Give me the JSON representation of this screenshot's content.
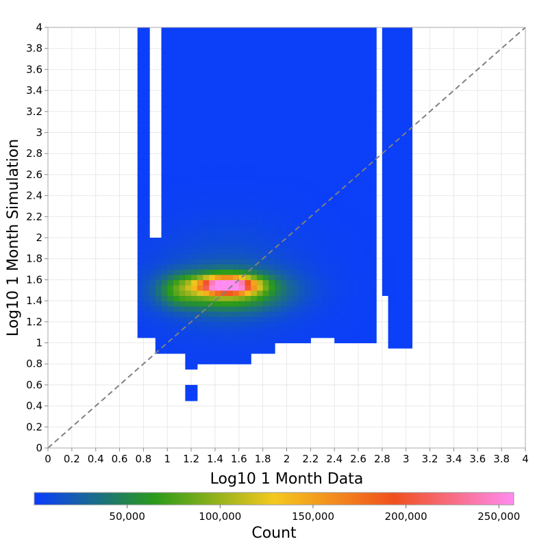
{
  "chart_data": {
    "type": "heatmap",
    "xlabel": "Log10 1 Month Data",
    "ylabel": "Log10 1 Month Simulation",
    "xlim": [
      0,
      4
    ],
    "ylim": [
      0,
      4
    ],
    "x_ticks": [
      "0",
      "0.2",
      "0.4",
      "0.6",
      "0.8",
      "1",
      "1.2",
      "1.4",
      "1.6",
      "1.8",
      "2",
      "2.2",
      "2.4",
      "2.6",
      "2.8",
      "3",
      "3.2",
      "3.4",
      "3.6",
      "3.8",
      "4"
    ],
    "y_ticks": [
      "0",
      "0.2",
      "0.4",
      "0.6",
      "0.8",
      "1",
      "1.2",
      "1.4",
      "1.6",
      "1.8",
      "2",
      "2.2",
      "2.4",
      "2.6",
      "2.8",
      "3",
      "3.2",
      "3.4",
      "3.6",
      "3.8",
      "4"
    ],
    "grid": true,
    "reference_line": {
      "style": "dashed",
      "color": "#808080",
      "from": [
        0,
        0
      ],
      "to": [
        4,
        4
      ]
    },
    "colorbar": {
      "label": "Count",
      "min": 0,
      "max": 258000,
      "tick_values": [
        50000,
        100000,
        150000,
        200000,
        250000
      ],
      "tick_labels": [
        "50,000",
        "100,000",
        "150,000",
        "200,000",
        "250,000"
      ],
      "colors": [
        "#0a3cff",
        "#2a9a1a",
        "#f5c81e",
        "#f0501e",
        "#ff8cf0"
      ]
    },
    "bin_width": 0.1,
    "peak": {
      "x": 1.5,
      "y": 1.55,
      "count": 250000
    },
    "background_count": 2000,
    "data_extent": {
      "x": [
        0.75,
        3.05
      ],
      "y": [
        0.45,
        4.0
      ]
    },
    "hotspots": [
      {
        "x": 1.5,
        "y": 1.55,
        "sx": 0.16,
        "sy": 0.055,
        "count": 240000
      },
      {
        "x": 1.5,
        "y": 1.5,
        "sx": 0.32,
        "sy": 0.13,
        "count": 80000
      },
      {
        "x": 1.1,
        "y": 1.5,
        "sx": 0.12,
        "sy": 0.1,
        "count": 35000
      },
      {
        "x": 1.5,
        "y": 1.6,
        "sx": 0.45,
        "sy": 0.35,
        "count": 15000
      }
    ]
  }
}
